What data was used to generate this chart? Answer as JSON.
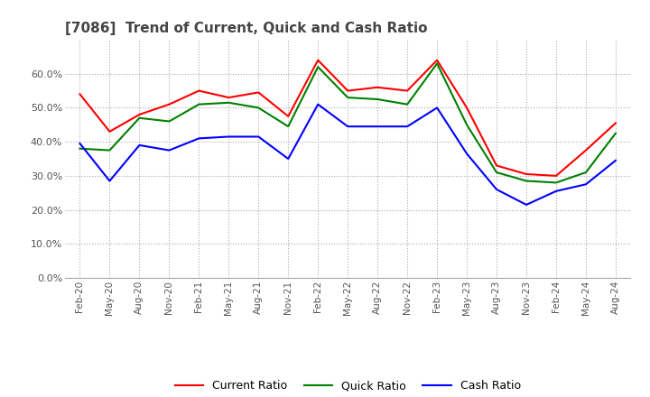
{
  "title": "[7086]  Trend of Current, Quick and Cash Ratio",
  "xlabel": "",
  "ylabel": "",
  "ylim": [
    0.0,
    0.7
  ],
  "yticks": [
    0.0,
    0.1,
    0.2,
    0.3,
    0.4,
    0.5,
    0.6
  ],
  "ytick_labels": [
    "0.0%",
    "10.0%",
    "20.0%",
    "30.0%",
    "40.0%",
    "50.0%",
    "60.0%"
  ],
  "line_colors": {
    "current": "#FF0000",
    "quick": "#008000",
    "cash": "#0000FF"
  },
  "legend_labels": [
    "Current Ratio",
    "Quick Ratio",
    "Cash Ratio"
  ],
  "background_color": "#FFFFFF",
  "dates": [
    "Feb-20",
    "May-20",
    "Aug-20",
    "Nov-20",
    "Feb-21",
    "May-21",
    "Aug-21",
    "Nov-21",
    "Feb-22",
    "May-22",
    "Aug-22",
    "Nov-22",
    "Feb-23",
    "May-23",
    "Aug-23",
    "Nov-23",
    "Feb-24",
    "May-24",
    "Aug-24"
  ],
  "current_ratio": [
    0.54,
    0.43,
    0.48,
    0.51,
    0.55,
    0.53,
    0.545,
    0.475,
    0.64,
    0.55,
    0.56,
    0.55,
    0.64,
    0.5,
    0.33,
    0.305,
    0.3,
    0.375,
    0.455
  ],
  "quick_ratio": [
    0.38,
    0.375,
    0.47,
    0.46,
    0.51,
    0.515,
    0.5,
    0.445,
    0.62,
    0.53,
    0.525,
    0.51,
    0.63,
    0.45,
    0.31,
    0.285,
    0.28,
    0.31,
    0.425
  ],
  "cash_ratio": [
    0.395,
    0.285,
    0.39,
    0.375,
    0.41,
    0.415,
    0.415,
    0.35,
    0.51,
    0.445,
    0.445,
    0.445,
    0.5,
    0.365,
    0.26,
    0.215,
    0.255,
    0.275,
    0.345
  ]
}
